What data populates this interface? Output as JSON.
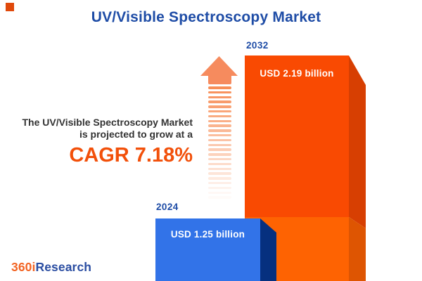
{
  "title": {
    "text": "UV/Visible Spectroscopy Market",
    "color": "#1E4CA6"
  },
  "corner_accent": {
    "color": "#E0490B"
  },
  "tagline": {
    "line1": "The UV/Visible Spectroscopy Market",
    "line2": "is projected to grow at a",
    "cagr": "CAGR 7.18%",
    "text_color": "#333333",
    "cagr_color": "#F2500A"
  },
  "growth_arrow": {
    "head_color": "#F68B5E",
    "dash_color": "#F7884E",
    "dash_count": 24
  },
  "chart_data": {
    "type": "bar",
    "title": "UV/Visible Spectroscopy Market",
    "unit": "USD billion",
    "categories": [
      "2024",
      "2032"
    ],
    "values": [
      1.25,
      2.19
    ],
    "growth_note": "CAGR 7.18%",
    "grid": false,
    "legend": "none",
    "bars": [
      {
        "year": "2024",
        "value": 1.25,
        "label": "USD 1.25 billion",
        "front_color": "#3273E8",
        "side_color": "#06307F"
      },
      {
        "year": "2032",
        "value": 2.19,
        "label": "USD 2.19 billion",
        "front_color": "#F94A02",
        "side_color": "#D73F02",
        "lower_front_color": "#FE6302",
        "lower_side_color": "#DE5502"
      }
    ],
    "year_label_color": "#1E4CA6",
    "value_label_color": "#FFFFFF"
  },
  "logo": {
    "part1": "360i",
    "part2": "Research",
    "part1_color": "#F26322",
    "part2_color": "#2B4EA2"
  }
}
